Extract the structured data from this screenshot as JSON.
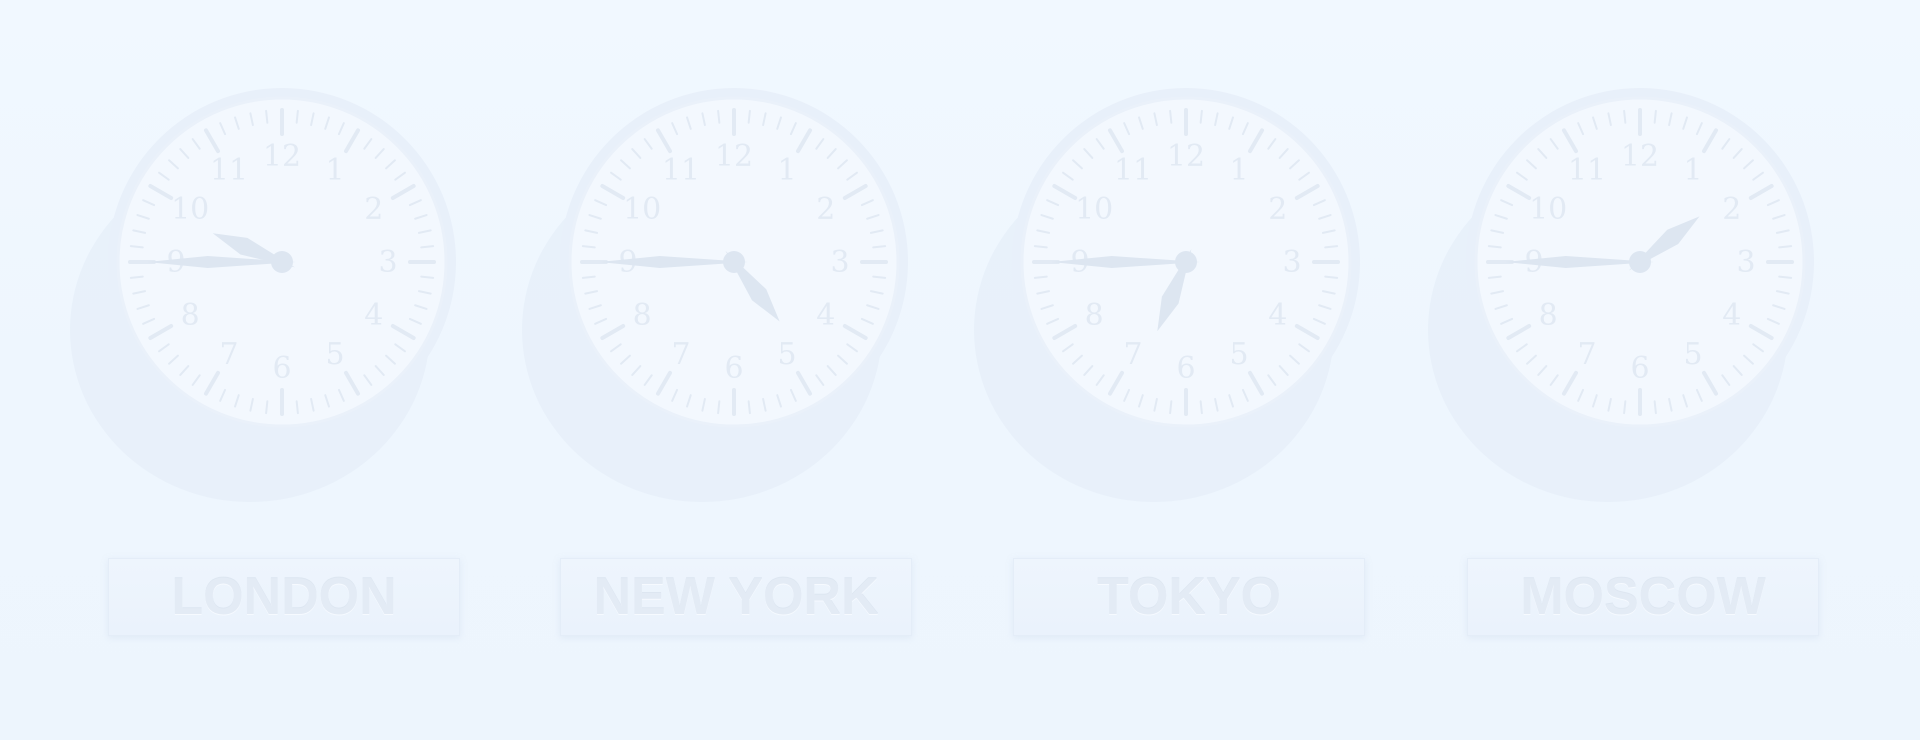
{
  "clocks": [
    {
      "city": "LONDON",
      "time": {
        "hour": 9,
        "minute": 45
      }
    },
    {
      "city": "NEW YORK",
      "time": {
        "hour": 4,
        "minute": 45
      }
    },
    {
      "city": "TOKYO",
      "time": {
        "hour": 6,
        "minute": 45
      }
    },
    {
      "city": "MOSCOW",
      "time": {
        "hour": 1,
        "minute": 45
      }
    }
  ],
  "dial_numbers": [
    "12",
    "1",
    "2",
    "3",
    "4",
    "5",
    "6",
    "7",
    "8",
    "9",
    "10",
    "11"
  ],
  "colors": {
    "background": "#eff7ff",
    "dial": "#f3f8fe",
    "rim": "#e8f0fa",
    "shadow": "#e7eff9",
    "numbers": "#e2eaf4",
    "hands": "#dde6f1",
    "label_text": "#e3ebf5"
  }
}
